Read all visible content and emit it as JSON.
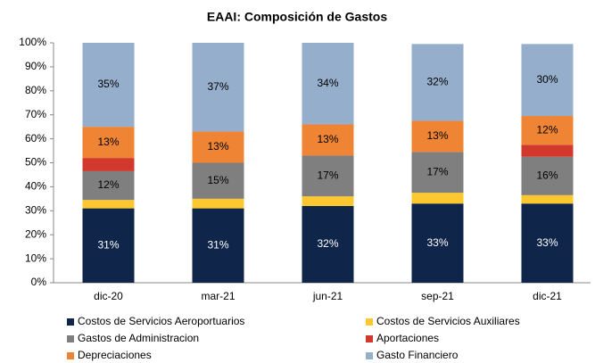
{
  "chart_data": {
    "type": "stacked_bar",
    "title": "EAAI: Composición de Gastos",
    "categories": [
      "dic-20",
      "mar-21",
      "jun-21",
      "sep-21",
      "dic-21"
    ],
    "series": [
      {
        "name": "Costos de Servicios Aeroportuarios",
        "color": "#0f2549",
        "values": [
          31,
          31,
          32,
          33,
          33
        ],
        "value_labels": [
          "31%",
          "31%",
          "32%",
          "33%",
          "33%"
        ]
      },
      {
        "name": "Costos de Servicios Auxiliares",
        "color": "#fdc82f",
        "values": [
          3.5,
          4,
          4,
          4.5,
          3.5
        ],
        "value_labels": [
          null,
          null,
          null,
          null,
          null
        ]
      },
      {
        "name": "Gastos de Administracion",
        "color": "#7f7f7f",
        "values": [
          12,
          15,
          17,
          17,
          16
        ],
        "value_labels": [
          "12%",
          "15%",
          "17%",
          "17%",
          "16%"
        ]
      },
      {
        "name": "Aportaciones",
        "color": "#d0392b",
        "values": [
          5.5,
          0,
          0,
          0,
          5
        ],
        "value_labels": [
          null,
          null,
          null,
          null,
          null
        ]
      },
      {
        "name": "Depreciaciones",
        "color": "#ee8434",
        "values": [
          13,
          13,
          13,
          13,
          12
        ],
        "value_labels": [
          "13%",
          "13%",
          "13%",
          "13%",
          "12%"
        ]
      },
      {
        "name": "Gasto Financiero",
        "color": "#94aecb",
        "values": [
          35,
          37,
          34,
          32,
          30
        ],
        "value_labels": [
          "35%",
          "37%",
          "34%",
          "32%",
          "30%"
        ]
      }
    ],
    "ylim": [
      0,
      100
    ],
    "yticks": [
      {
        "value": 0,
        "label": "0%"
      },
      {
        "value": 10,
        "label": "10%"
      },
      {
        "value": 20,
        "label": "20%"
      },
      {
        "value": 30,
        "label": "30%"
      },
      {
        "value": 40,
        "label": "40%"
      },
      {
        "value": 50,
        "label": "50%"
      },
      {
        "value": 60,
        "label": "60%"
      },
      {
        "value": 70,
        "label": "70%"
      },
      {
        "value": 80,
        "label": "80%"
      },
      {
        "value": 90,
        "label": "90%"
      },
      {
        "value": 100,
        "label": "100%"
      }
    ],
    "legend": "bottom"
  }
}
